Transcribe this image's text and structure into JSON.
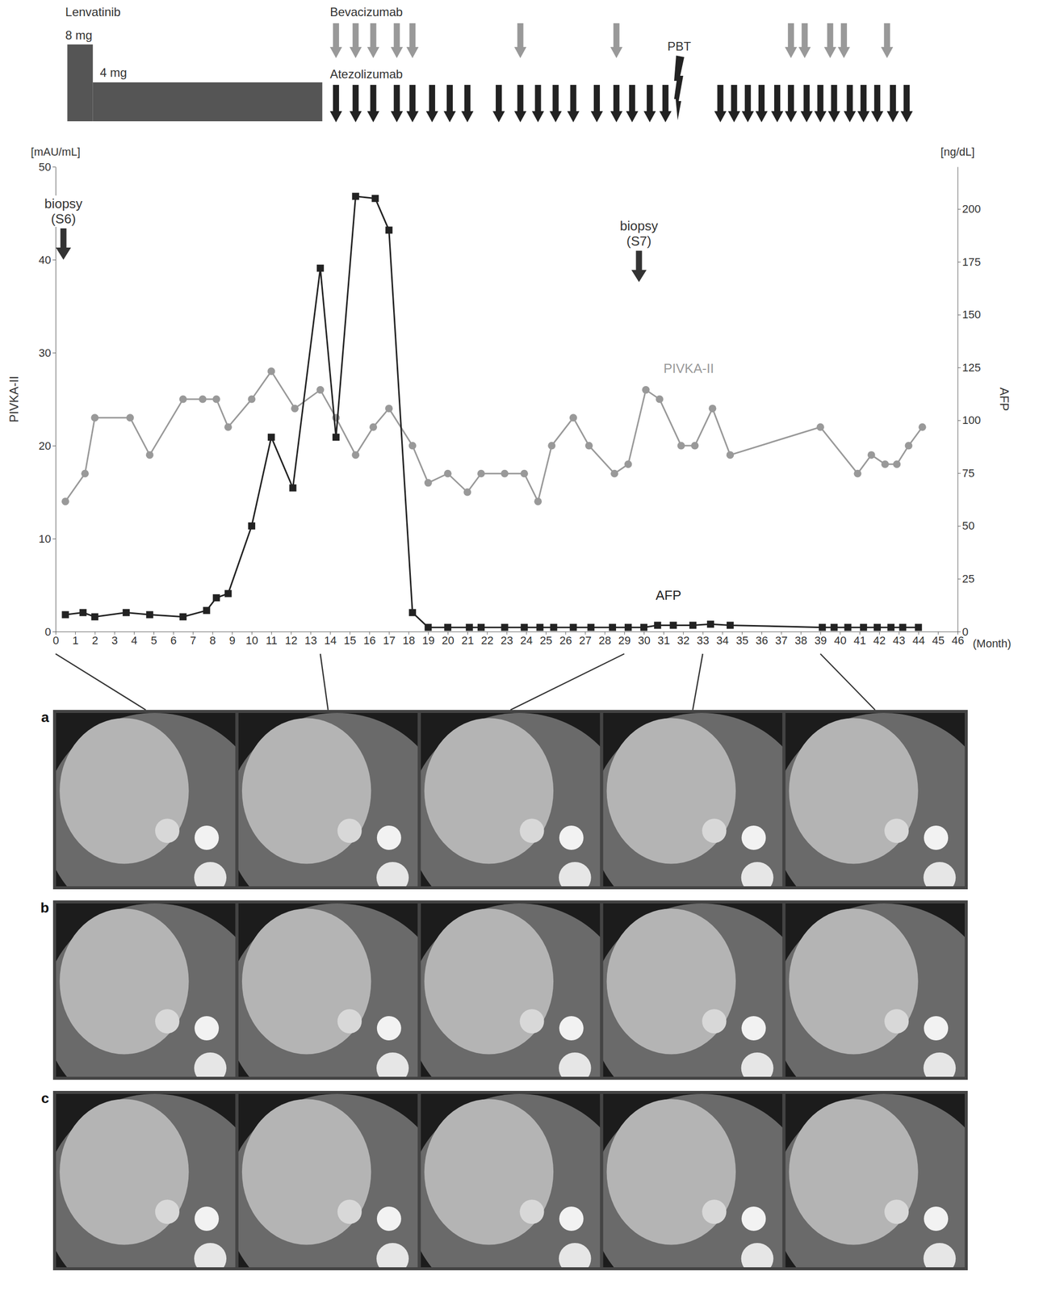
{
  "chart_data": {
    "type": "line",
    "treatment": {
      "lenvatinib": {
        "label": "Lenvatinib",
        "doses": [
          {
            "label": "8 mg",
            "start": 0.6,
            "end": 1.9
          },
          {
            "label": "4 mg",
            "start": 1.9,
            "end": 13.6
          }
        ]
      },
      "bevacizumab": {
        "label": "Bevacizumab",
        "x": [
          14.3,
          15.3,
          16.2,
          17.4,
          18.2,
          23.7,
          28.6,
          37.5,
          38.2,
          39.5,
          40.2,
          42.4
        ]
      },
      "atezolizumab": {
        "label": "Atezolizumab",
        "x": [
          14.3,
          15.3,
          16.2,
          17.4,
          18.2,
          19.2,
          20.1,
          21,
          22.6,
          23.7,
          24.6,
          25.5,
          26.4,
          27.6,
          28.6,
          29.4,
          30.3,
          31.1,
          33.9,
          34.6,
          35.3,
          36,
          36.8,
          37.5,
          38.3,
          39,
          39.7,
          40.5,
          41.2,
          41.9,
          42.7,
          43.4
        ]
      },
      "pbt": {
        "label": "PBT",
        "x": 31.8
      }
    },
    "x_label": "(Month)",
    "xlim": [
      0,
      46
    ],
    "xticks": [
      0,
      1,
      2,
      3,
      4,
      5,
      6,
      7,
      8,
      9,
      10,
      11,
      12,
      13,
      14,
      15,
      16,
      17,
      18,
      19,
      20,
      21,
      22,
      23,
      24,
      25,
      26,
      27,
      28,
      29,
      30,
      31,
      32,
      33,
      34,
      35,
      36,
      37,
      38,
      39,
      40,
      41,
      42,
      43,
      44,
      45,
      46
    ],
    "y_label": "PIVKA-II",
    "y_unit": "[mAU/mL]",
    "ylim": [
      0,
      50
    ],
    "yticks": [
      0,
      10,
      20,
      30,
      40,
      50
    ],
    "y2_label": "AFP",
    "y2_unit": "[ng/dL]",
    "y2lim": [
      0,
      220
    ],
    "y2ticks": [
      0,
      25,
      50,
      75,
      100,
      125,
      150,
      175,
      200
    ],
    "grid": false,
    "series": [
      {
        "name": "PIVKA-II",
        "color": "#999999",
        "marker": "circle",
        "line_style": "solid",
        "label_x": 31.0,
        "label_y": 27.8,
        "x": [
          0.5,
          1.5,
          2,
          3.8,
          4.8,
          6.5,
          7.5,
          8.2,
          8.8,
          10,
          11,
          12.2,
          13.5,
          14.3,
          15.3,
          16.2,
          17,
          18.2,
          19,
          20,
          21,
          21.7,
          22.9,
          23.9,
          24.6,
          25.3,
          26.4,
          27.2,
          28.5,
          29.2,
          30.1,
          30.8,
          31.9,
          32.6,
          33.5,
          34.4,
          39,
          40.9,
          41.6,
          42.3,
          42.9,
          43.5,
          44.2
        ],
        "values": [
          14,
          17,
          23,
          23,
          19,
          25,
          25,
          25,
          22,
          25,
          28,
          24,
          26,
          23,
          19,
          22,
          24,
          20,
          16,
          17,
          15,
          17,
          17,
          17,
          14,
          20,
          23,
          20,
          17,
          18,
          26,
          25,
          20,
          20,
          24,
          19,
          22,
          17,
          19,
          18,
          18,
          20,
          22
        ]
      },
      {
        "name": "AFP",
        "color": "#222222",
        "marker": "square",
        "line_style": "solid",
        "axis": "y2",
        "label_x": 30.6,
        "label_y": 15,
        "x": [
          0.5,
          1.4,
          2,
          3.6,
          4.8,
          6.5,
          7.7,
          8.2,
          8.8,
          10,
          11,
          12.1,
          13.5,
          14.3,
          15.3,
          16.3,
          17,
          18.2,
          19,
          20,
          21.1,
          21.7,
          22.9,
          23.9,
          24.7,
          25.4,
          26.4,
          27.3,
          28.4,
          29.2,
          30,
          30.7,
          31.5,
          32.5,
          33.4,
          34.4,
          39.1,
          39.7,
          40.4,
          41.2,
          41.9,
          42.6,
          43.2,
          44
        ],
        "values": [
          8,
          9,
          7,
          9,
          8,
          7,
          10,
          16,
          18,
          50,
          92,
          68,
          172,
          92,
          206,
          205,
          190,
          9,
          2,
          2,
          2,
          2,
          2,
          2,
          2,
          2,
          2,
          2,
          2,
          2,
          2,
          3,
          3,
          3,
          3.5,
          3,
          2,
          2,
          2,
          2,
          2,
          2,
          2,
          2
        ]
      }
    ],
    "annotations": [
      {
        "text": [
          "biopsy",
          "(S6)"
        ],
        "x": 0.4,
        "y": 40
      },
      {
        "text": [
          "biopsy",
          "(S7)"
        ],
        "x": 29.75,
        "y": 37.6
      }
    ],
    "ct_panels": {
      "labels": [
        "a",
        "b",
        "c"
      ],
      "months": [
        0,
        13.5,
        29,
        33,
        39
      ]
    }
  }
}
